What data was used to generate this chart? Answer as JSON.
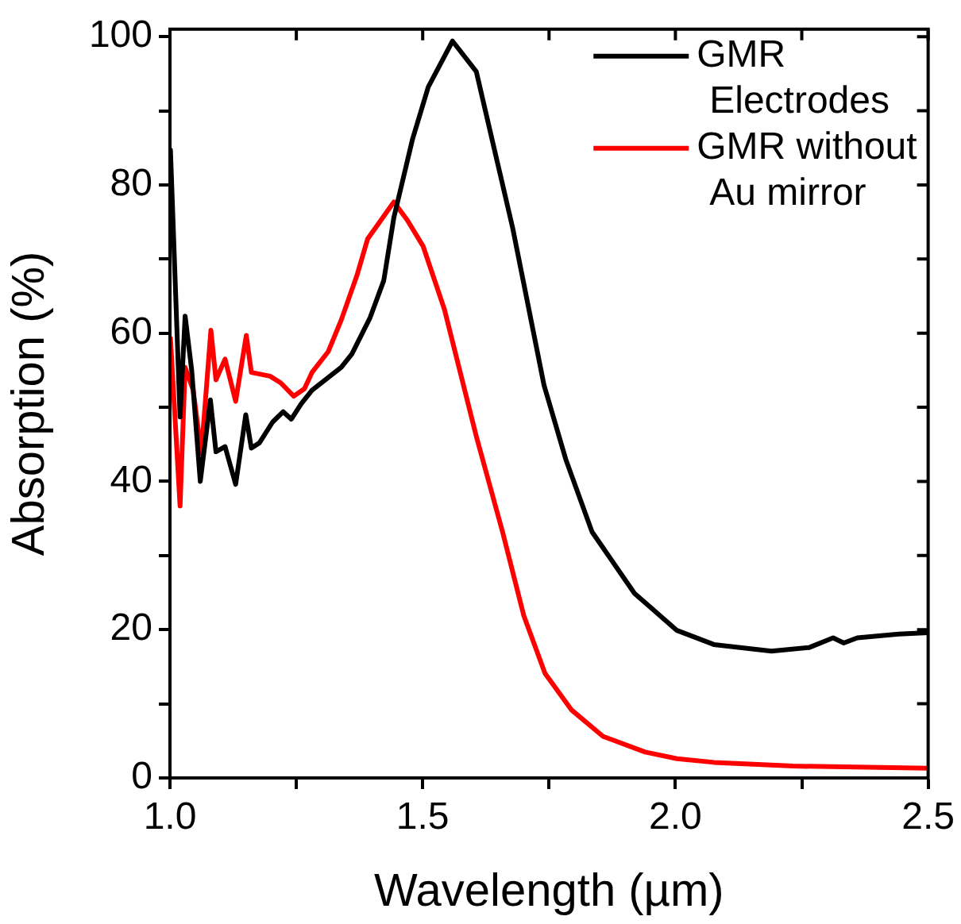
{
  "chart_data": {
    "type": "line",
    "xlabel": "Wavelength (µm)",
    "ylabel": "Absorption (%)",
    "xlim": [
      1.0,
      2.5
    ],
    "xticks": [
      {
        "value": 1.0,
        "label": "1.0"
      },
      {
        "value": 1.25,
        "label": null
      },
      {
        "value": 1.5,
        "label": "1.5"
      },
      {
        "value": 1.75,
        "label": null
      },
      {
        "value": 2.0,
        "label": "2.0"
      },
      {
        "value": 2.25,
        "label": null
      },
      {
        "value": 2.5,
        "label": "2.5"
      }
    ],
    "ylim": [
      0,
      101
    ],
    "yticks": [
      0,
      {
        "value": 10,
        "label": null
      },
      20,
      {
        "value": 30,
        "label": null
      },
      40,
      {
        "value": 50,
        "label": null
      },
      60,
      {
        "value": 70,
        "label": null
      },
      80,
      {
        "value": 90,
        "label": null
      },
      100
    ],
    "grid": false,
    "legend": "top right",
    "marker": "none",
    "line_style": "solid",
    "series": [
      {
        "name": "GMR Electrodes",
        "color": "#000000",
        "x": [
          1.001,
          1.02,
          1.03,
          1.043,
          1.06,
          1.08,
          1.091,
          1.109,
          1.13,
          1.15,
          1.161,
          1.177,
          1.203,
          1.224,
          1.24,
          1.26,
          1.281,
          1.313,
          1.339,
          1.36,
          1.396,
          1.423,
          1.443,
          1.48,
          1.511,
          1.559,
          1.606,
          1.637,
          1.678,
          1.74,
          1.783,
          1.835,
          1.919,
          2.003,
          2.076,
          2.19,
          2.265,
          2.312,
          2.333,
          2.36,
          2.442,
          2.5
        ],
        "values": [
          84.7,
          48.7,
          62.3,
          55,
          40,
          51,
          44,
          44.7,
          39.6,
          49,
          44.5,
          45.2,
          48,
          49.4,
          48.4,
          50.5,
          52.3,
          54,
          55.4,
          57.2,
          62.1,
          67.1,
          75.6,
          86.2,
          93.2,
          99.4,
          95.3,
          86.2,
          74.2,
          53,
          43,
          33.2,
          24.9,
          19.9,
          18,
          17.1,
          17.6,
          18.9,
          18.2,
          18.9,
          19.4,
          19.6
        ]
      },
      {
        "name": "GMR without Au mirror",
        "color": "#ff0000",
        "x": [
          1.001,
          1.02,
          1.03,
          1.046,
          1.062,
          1.081,
          1.091,
          1.109,
          1.13,
          1.151,
          1.161,
          1.198,
          1.219,
          1.245,
          1.266,
          1.281,
          1.313,
          1.339,
          1.37,
          1.391,
          1.417,
          1.443,
          1.47,
          1.501,
          1.543,
          1.606,
          1.658,
          1.7,
          1.742,
          1.794,
          1.857,
          1.94,
          2.003,
          2.076,
          2.233,
          2.5
        ],
        "values": [
          59.3,
          36.7,
          55.4,
          52.3,
          43.8,
          60.4,
          53.7,
          56.5,
          50.8,
          59.7,
          54.7,
          54.2,
          53.3,
          51.5,
          52.5,
          54.7,
          57.5,
          61.8,
          67.8,
          72.7,
          75.2,
          77.7,
          75.2,
          71.7,
          63.2,
          46.1,
          33.2,
          21.9,
          14.1,
          9.2,
          5.6,
          3.5,
          2.6,
          2.1,
          1.6,
          1.3
        ]
      }
    ]
  }
}
